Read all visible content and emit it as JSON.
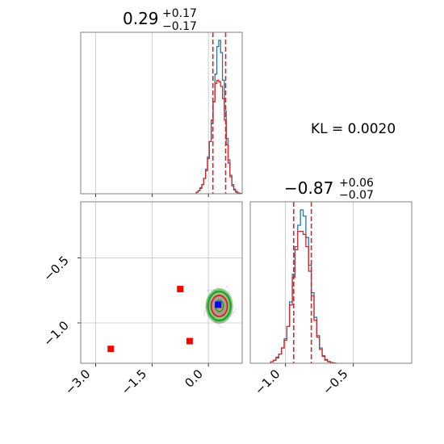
{
  "chart_data": [
    {
      "type": "histogram",
      "panel": "top-left",
      "title_value": "0.29",
      "title_plus": "+0.17",
      "title_minus": "−0.17",
      "xlim": [
        -3.4,
        0.9
      ],
      "quantile_lines": [
        0.12,
        0.46
      ],
      "grid": true,
      "series": [
        {
          "color": "#1f77b4",
          "bins_x": [
            -0.3,
            -0.25,
            -0.2,
            -0.15,
            -0.1,
            -0.05,
            0.0,
            0.05,
            0.1,
            0.15,
            0.2,
            0.25,
            0.3,
            0.35,
            0.4,
            0.45,
            0.5,
            0.55,
            0.6,
            0.65,
            0.7,
            0.75,
            0.8,
            0.85
          ],
          "counts": [
            0.01,
            0.02,
            0.04,
            0.06,
            0.1,
            0.16,
            0.24,
            0.34,
            0.46,
            0.6,
            0.78,
            0.96,
            1.0,
            0.92,
            0.74,
            0.54,
            0.36,
            0.22,
            0.12,
            0.06,
            0.03,
            0.015,
            0.006,
            0.002
          ]
        },
        {
          "color": "#d62728",
          "bins_x": [
            -0.3,
            -0.25,
            -0.2,
            -0.15,
            -0.1,
            -0.05,
            0.0,
            0.05,
            0.1,
            0.15,
            0.2,
            0.25,
            0.3,
            0.35,
            0.4,
            0.45,
            0.5,
            0.55,
            0.6,
            0.65,
            0.7,
            0.75,
            0.8,
            0.85
          ],
          "counts": [
            0.01,
            0.02,
            0.035,
            0.06,
            0.1,
            0.15,
            0.23,
            0.34,
            0.48,
            0.6,
            0.72,
            0.74,
            0.73,
            0.7,
            0.62,
            0.48,
            0.32,
            0.2,
            0.11,
            0.05,
            0.025,
            0.01,
            0.004,
            0.001
          ]
        }
      ]
    },
    {
      "type": "scatter",
      "panel": "bottom-left",
      "xlim": [
        -3.4,
        0.9
      ],
      "ylim": [
        -1.31,
        -0.07
      ],
      "x_ticks": [
        "−3.0",
        "−1.5",
        "0.0"
      ],
      "x_tick_values": [
        -3.0,
        -1.5,
        0.0
      ],
      "y_ticks": [
        "−0.5",
        "−1.0"
      ],
      "y_tick_values": [
        -0.5,
        -1.0
      ],
      "grid": true,
      "contour_center": [
        0.29,
        -0.87
      ],
      "contour_color": "#2ca02c",
      "inner_color": "#d62728",
      "truth_point": {
        "x": 0.26,
        "y": -0.86,
        "color": "#0000ff"
      },
      "markers": [
        {
          "x": -0.75,
          "y": -0.74,
          "color": "#ff0000"
        },
        {
          "x": -0.5,
          "y": -1.14,
          "color": "#ff0000"
        },
        {
          "x": -2.6,
          "y": -1.2,
          "color": "#ff0000"
        }
      ]
    },
    {
      "type": "histogram",
      "panel": "bottom-right",
      "title_value": "−0.87",
      "title_plus": "+0.06",
      "title_minus": "−0.07",
      "xlim": [
        -1.26,
        -0.07
      ],
      "x_ticks": [
        "−1.0",
        "−0.5"
      ],
      "x_tick_values": [
        -1.0,
        -0.5
      ],
      "quantile_lines": [
        -0.94,
        -0.81
      ],
      "grid": true,
      "series": [
        {
          "color": "#1f77b4",
          "bins_x": [
            -1.1,
            -1.08,
            -1.06,
            -1.04,
            -1.02,
            -1.0,
            -0.98,
            -0.96,
            -0.94,
            -0.92,
            -0.9,
            -0.88,
            -0.86,
            -0.84,
            -0.82,
            -0.8,
            -0.78,
            -0.76,
            -0.74,
            -0.72,
            -0.7,
            -0.68,
            -0.66,
            -0.64
          ],
          "counts": [
            0.01,
            0.02,
            0.04,
            0.06,
            0.1,
            0.16,
            0.24,
            0.4,
            0.58,
            0.76,
            0.9,
            1.0,
            0.96,
            0.82,
            0.64,
            0.46,
            0.3,
            0.18,
            0.1,
            0.05,
            0.025,
            0.012,
            0.005,
            0.002
          ]
        },
        {
          "color": "#d62728",
          "bins_x": [
            -1.1,
            -1.08,
            -1.06,
            -1.04,
            -1.02,
            -1.0,
            -0.98,
            -0.96,
            -0.94,
            -0.92,
            -0.9,
            -0.88,
            -0.86,
            -0.84,
            -0.82,
            -0.8,
            -0.78,
            -0.76,
            -0.74,
            -0.72,
            -0.7,
            -0.68,
            -0.66,
            -0.64
          ],
          "counts": [
            0.01,
            0.02,
            0.035,
            0.06,
            0.1,
            0.15,
            0.24,
            0.38,
            0.56,
            0.74,
            0.86,
            0.86,
            0.84,
            0.76,
            0.6,
            0.44,
            0.28,
            0.17,
            0.09,
            0.045,
            0.02,
            0.01,
            0.004,
            0.001
          ]
        }
      ]
    }
  ],
  "annotation": {
    "kl_text": "KL = 0.0020"
  },
  "colors": {
    "quantile": "#d62728",
    "grid": "#b0b0b0",
    "axis": "#808080"
  }
}
